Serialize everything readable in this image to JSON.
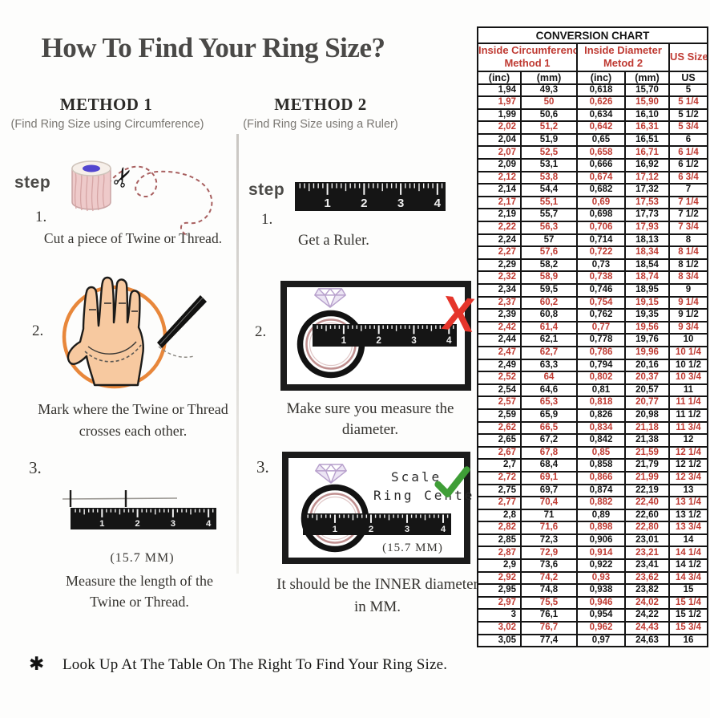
{
  "page": {
    "title": "How To Find Your Ring Size?",
    "footnote_marker": "✱",
    "footnote": "Look Up At The Table On The Right To Find Your Ring Size."
  },
  "icons": {
    "scissors": "✂"
  },
  "method1": {
    "heading": "METHOD 1",
    "subheading": "(Find Ring Size using Circumference)",
    "step_label": "step",
    "step1": {
      "number": "1.",
      "caption": "Cut a piece of  Twine or Thread."
    },
    "step2": {
      "number": "2.",
      "caption_line1": "Mark where the Twine or Thread",
      "caption_line2": "crosses each other."
    },
    "step3": {
      "number": "3.",
      "measurement": "(15.7 MM)",
      "caption_line1": "Measure the length of the",
      "caption_line2": "Twine or Thread."
    }
  },
  "method2": {
    "heading": "METHOD 2",
    "subheading": "(Find Ring Size using a Ruler)",
    "step_label": "step",
    "step1": {
      "number": "1.",
      "caption": "Get a Ruler."
    },
    "step2": {
      "number": "2.",
      "wrong_mark": "X",
      "caption": "Make sure you measure the diameter."
    },
    "step3": {
      "number": "3.",
      "scale_line1": "Scale",
      "scale_line2": "Ring Center",
      "measurement": "(15.7 MM)",
      "caption_line1": "It should be the INNER diameter",
      "caption_line2": "in MM."
    }
  },
  "rulers": {
    "numbers": [
      "1",
      "2",
      "3",
      "4"
    ]
  },
  "colors": {
    "accent_red": "#bf3a32",
    "wrong_x_red": "#e5352b",
    "check_green": "#3f9e37",
    "circle_orange": "#e8873b",
    "ring_rose": "#c09090",
    "hand_skin": "#f7c9a0",
    "ruler_black": "#151515",
    "thread_pink": "#a85f5f",
    "diamond_purple": "#b7a0cc"
  },
  "chart_data": {
    "type": "table",
    "title": "CONVERSION CHART",
    "column_groups": [
      {
        "line1": "Inside Circumference",
        "line2": "Method 1",
        "span": 2
      },
      {
        "line1": "Inside Diameter",
        "line2": "Metod 2",
        "span": 2
      },
      {
        "line1": "US Sizes",
        "span": 1
      }
    ],
    "subheaders": [
      "(inc)",
      "(mm)",
      "(inc)",
      "(mm)",
      "US"
    ],
    "rows": [
      [
        "1,94",
        "49,3",
        "0,618",
        "15,70",
        "5"
      ],
      [
        "1,97",
        "50",
        "0,626",
        "15,90",
        "5 1/4"
      ],
      [
        "1,99",
        "50,6",
        "0,634",
        "16,10",
        "5 1/2"
      ],
      [
        "2,02",
        "51,2",
        "0,642",
        "16,31",
        "5 3/4"
      ],
      [
        "2,04",
        "51,9",
        "0,65",
        "16,51",
        "6"
      ],
      [
        "2,07",
        "52,5",
        "0,658",
        "16,71",
        "6 1/4"
      ],
      [
        "2,09",
        "53,1",
        "0,666",
        "16,92",
        "6 1/2"
      ],
      [
        "2,12",
        "53,8",
        "0,674",
        "17,12",
        "6 3/4"
      ],
      [
        "2,14",
        "54,4",
        "0,682",
        "17,32",
        "7"
      ],
      [
        "2,17",
        "55,1",
        "0,69",
        "17,53",
        "7 1/4"
      ],
      [
        "2,19",
        "55,7",
        "0,698",
        "17,73",
        "7 1/2"
      ],
      [
        "2,22",
        "56,3",
        "0,706",
        "17,93",
        "7 3/4"
      ],
      [
        "2,24",
        "57",
        "0,714",
        "18,13",
        "8"
      ],
      [
        "2,27",
        "57,6",
        "0,722",
        "18,34",
        "8 1/4"
      ],
      [
        "2,29",
        "58,2",
        "0,73",
        "18,54",
        "8 1/2"
      ],
      [
        "2,32",
        "58,9",
        "0,738",
        "18,74",
        "8 3/4"
      ],
      [
        "2,34",
        "59,5",
        "0,746",
        "18,95",
        "9"
      ],
      [
        "2,37",
        "60,2",
        "0,754",
        "19,15",
        "9 1/4"
      ],
      [
        "2,39",
        "60,8",
        "0,762",
        "19,35",
        "9 1/2"
      ],
      [
        "2,42",
        "61,4",
        "0,77",
        "19,56",
        "9 3/4"
      ],
      [
        "2,44",
        "62,1",
        "0,778",
        "19,76",
        "10"
      ],
      [
        "2,47",
        "62,7",
        "0,786",
        "19,96",
        "10 1/4"
      ],
      [
        "2,49",
        "63,3",
        "0,794",
        "20,16",
        "10 1/2"
      ],
      [
        "2,52",
        "64",
        "0,802",
        "20,37",
        "10 3/4"
      ],
      [
        "2,54",
        "64,6",
        "0,81",
        "20,57",
        "11"
      ],
      [
        "2,57",
        "65,3",
        "0,818",
        "20,77",
        "11 1/4"
      ],
      [
        "2,59",
        "65,9",
        "0,826",
        "20,98",
        "11 1/2"
      ],
      [
        "2,62",
        "66,5",
        "0,834",
        "21,18",
        "11 3/4"
      ],
      [
        "2,65",
        "67,2",
        "0,842",
        "21,38",
        "12"
      ],
      [
        "2,67",
        "67,8",
        "0,85",
        "21,59",
        "12 1/4"
      ],
      [
        "2,7",
        "68,4",
        "0,858",
        "21,79",
        "12 1/2"
      ],
      [
        "2,72",
        "69,1",
        "0,866",
        "21,99",
        "12 3/4"
      ],
      [
        "2,75",
        "69,7",
        "0,874",
        "22,19",
        "13"
      ],
      [
        "2,77",
        "70,4",
        "0,882",
        "22,40",
        "13 1/4"
      ],
      [
        "2,8",
        "71",
        "0,89",
        "22,60",
        "13 1/2"
      ],
      [
        "2,82",
        "71,6",
        "0,898",
        "22,80",
        "13 3/4"
      ],
      [
        "2,85",
        "72,3",
        "0,906",
        "23,01",
        "14"
      ],
      [
        "2,87",
        "72,9",
        "0,914",
        "23,21",
        "14 1/4"
      ],
      [
        "2,9",
        "73,6",
        "0,922",
        "23,41",
        "14 1/2"
      ],
      [
        "2,92",
        "74,2",
        "0,93",
        "23,62",
        "14 3/4"
      ],
      [
        "2,95",
        "74,8",
        "0,938",
        "23,82",
        "15"
      ],
      [
        "2,97",
        "75,5",
        "0,946",
        "24,02",
        "15 1/4"
      ],
      [
        "3",
        "76,1",
        "0,954",
        "24,22",
        "15 1/2"
      ],
      [
        "3,02",
        "76,7",
        "0,962",
        "24,43",
        "15 3/4"
      ],
      [
        "3,05",
        "77,4",
        "0,97",
        "24,63",
        "16"
      ]
    ]
  }
}
